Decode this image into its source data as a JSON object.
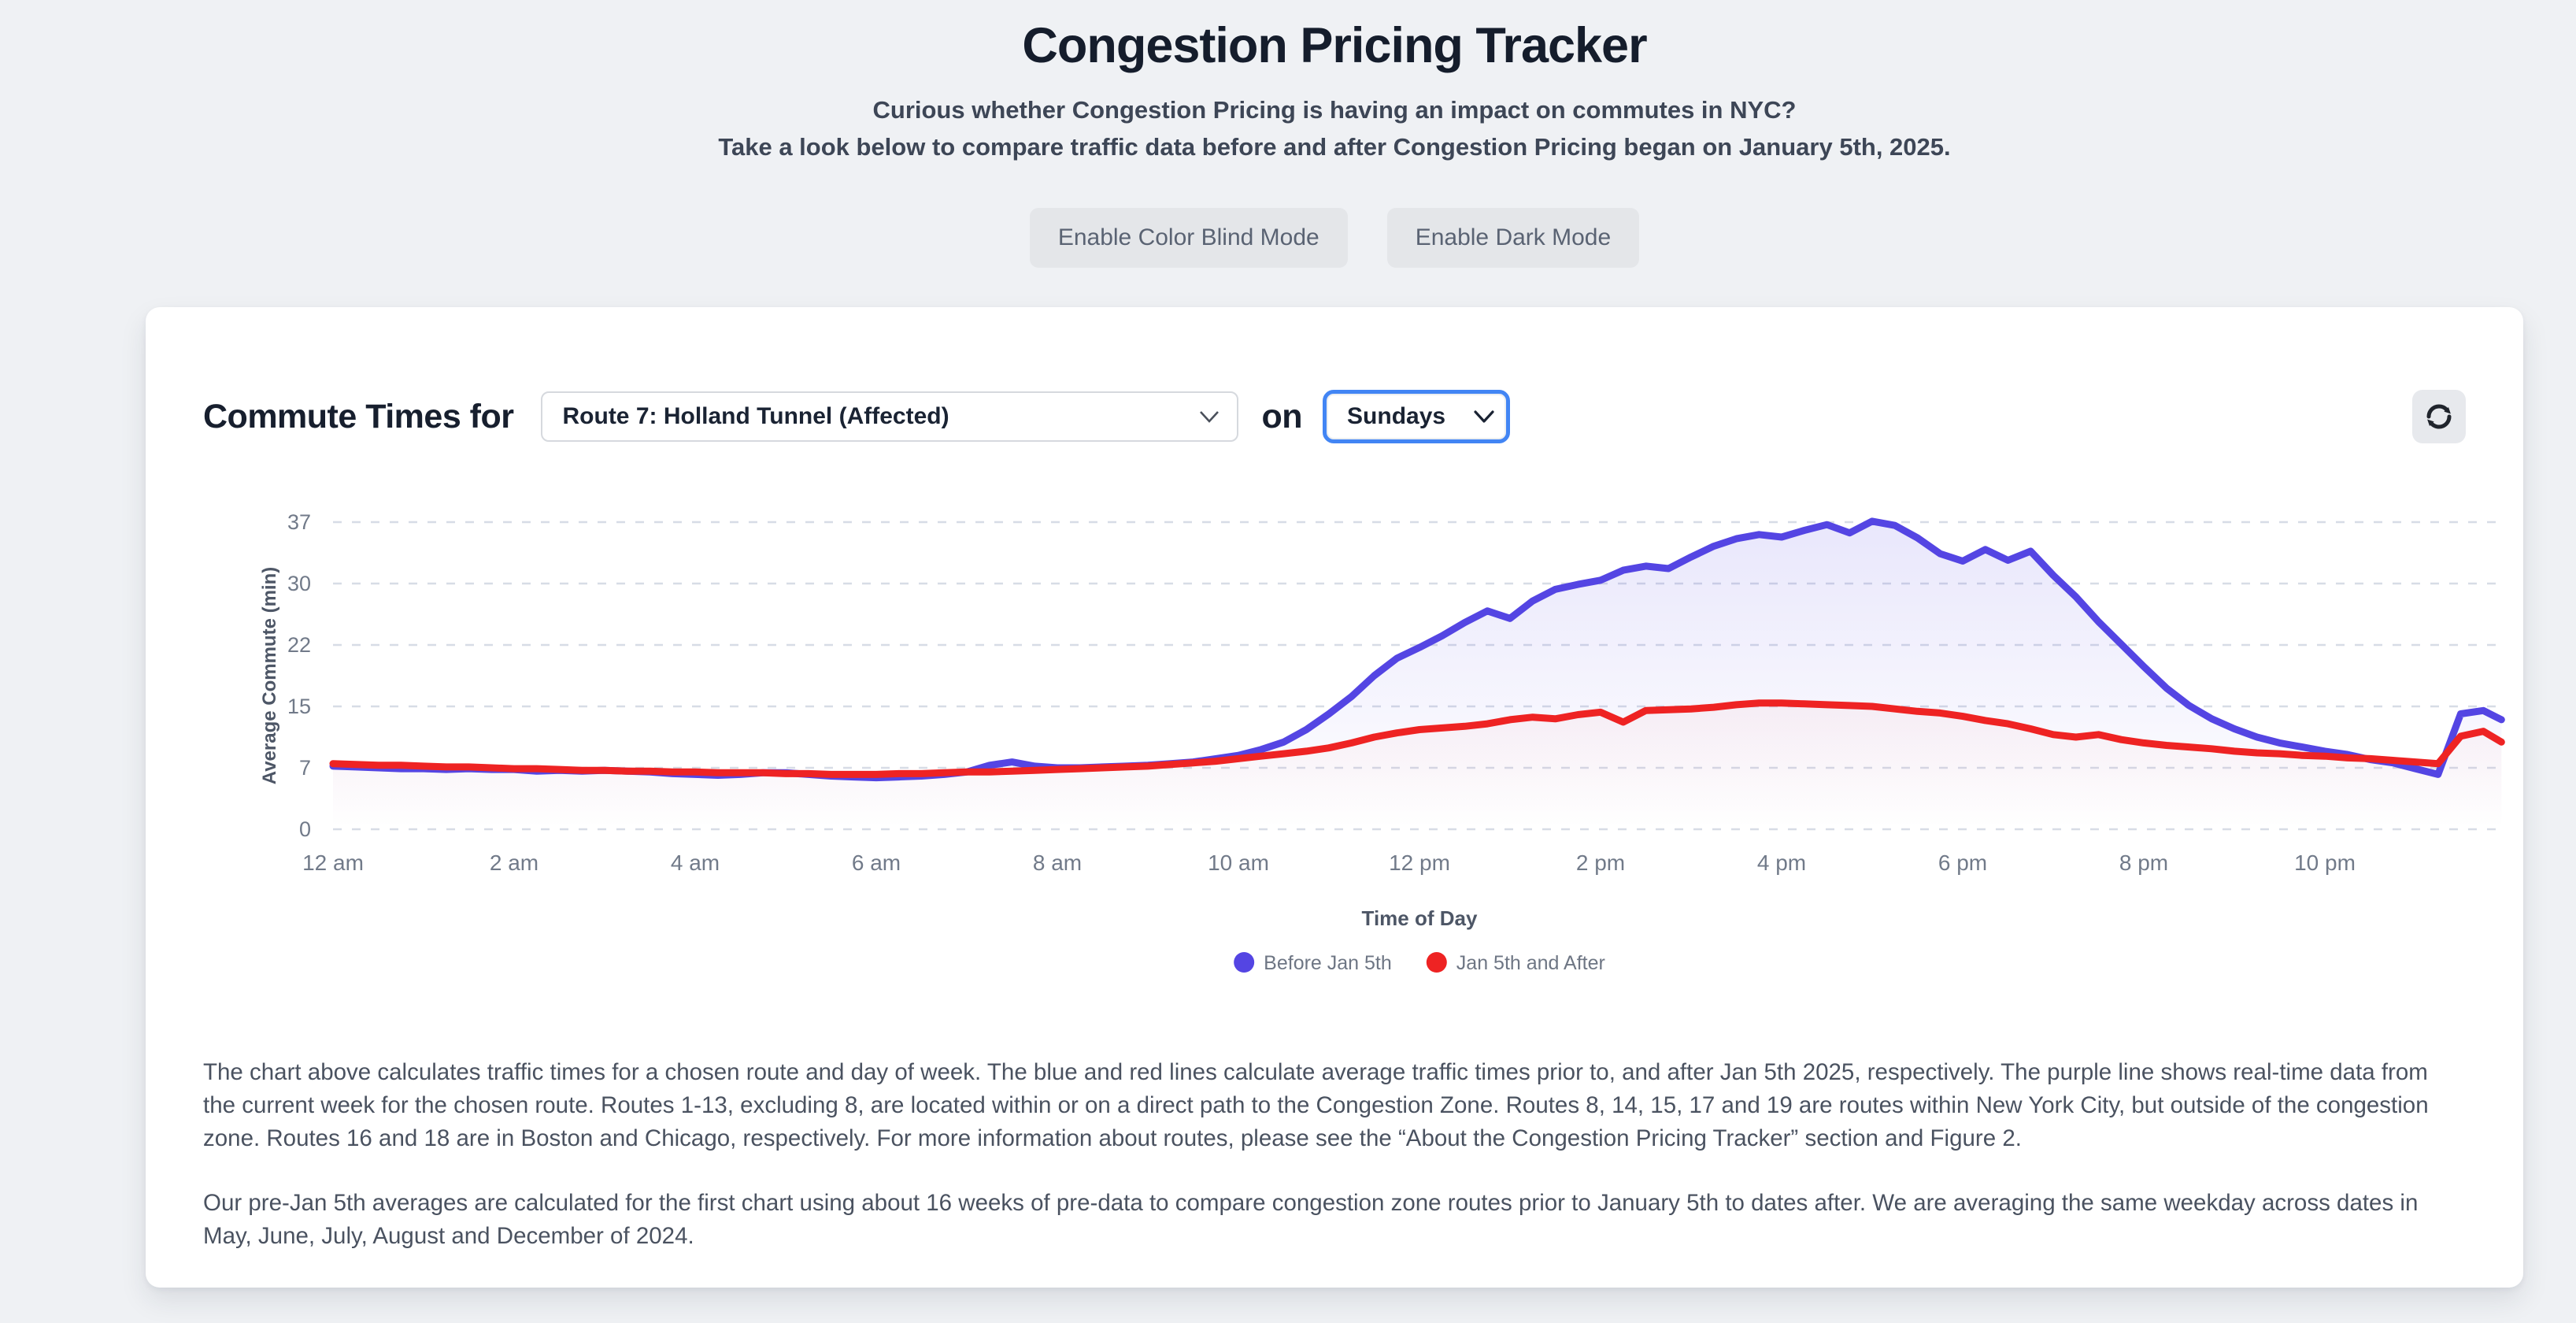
{
  "page": {
    "background_color": "#eff1f4",
    "card_color": "#ffffff"
  },
  "header": {
    "title": "Congestion Pricing Tracker",
    "subtitle_line1": "Curious whether Congestion Pricing is having an impact on commutes in NYC?",
    "subtitle_line2": "Take a look below to compare traffic data before and after Congestion Pricing began on January 5th, 2025.",
    "buttons": {
      "color_blind": "Enable Color Blind Mode",
      "dark_mode": "Enable Dark Mode"
    }
  },
  "controls": {
    "prefix_label": "Commute Times for",
    "route_select": {
      "value": "Route 7: Holland Tunnel (Affected)"
    },
    "conjunction_label": "on",
    "day_select": {
      "value": "Sundays",
      "focus_border_color": "#4285f4"
    },
    "refresh_icon": "refresh-sync"
  },
  "chart_data": {
    "type": "line",
    "title": "",
    "xlabel": "Time of Day",
    "ylabel": "Average Commute (min)",
    "xlim": [
      0,
      24
    ],
    "ylim": [
      0,
      37
    ],
    "grid": "horizontal-dashed",
    "legend_position": "bottom",
    "x_ticks": [
      {
        "hour": 0,
        "label": "12 am"
      },
      {
        "hour": 2,
        "label": "2 am"
      },
      {
        "hour": 4,
        "label": "4 am"
      },
      {
        "hour": 6,
        "label": "6 am"
      },
      {
        "hour": 8,
        "label": "8 am"
      },
      {
        "hour": 10,
        "label": "10 am"
      },
      {
        "hour": 12,
        "label": "12 pm"
      },
      {
        "hour": 14,
        "label": "2 pm"
      },
      {
        "hour": 16,
        "label": "4 pm"
      },
      {
        "hour": 18,
        "label": "6 pm"
      },
      {
        "hour": 20,
        "label": "8 pm"
      },
      {
        "hour": 22,
        "label": "10 pm"
      }
    ],
    "y_ticks": [
      {
        "value": 0,
        "label": "0"
      },
      {
        "value": 7.4,
        "label": "7"
      },
      {
        "value": 14.8,
        "label": "15"
      },
      {
        "value": 22.2,
        "label": "22"
      },
      {
        "value": 29.6,
        "label": "30"
      },
      {
        "value": 37,
        "label": "37"
      }
    ],
    "x_hours": [
      0,
      0.25,
      0.5,
      0.75,
      1,
      1.25,
      1.5,
      1.75,
      2,
      2.25,
      2.5,
      2.75,
      3,
      3.25,
      3.5,
      3.75,
      4,
      4.25,
      4.5,
      4.75,
      5,
      5.25,
      5.5,
      5.75,
      6,
      6.25,
      6.5,
      6.75,
      7,
      7.25,
      7.5,
      7.75,
      8,
      8.25,
      8.5,
      8.75,
      9,
      9.25,
      9.5,
      9.75,
      10,
      10.25,
      10.5,
      10.75,
      11,
      11.25,
      11.5,
      11.75,
      12,
      12.25,
      12.5,
      12.75,
      13,
      13.25,
      13.5,
      13.75,
      14,
      14.25,
      14.5,
      14.75,
      15,
      15.25,
      15.5,
      15.75,
      16,
      16.25,
      16.5,
      16.75,
      17,
      17.25,
      17.5,
      17.75,
      18,
      18.25,
      18.5,
      18.75,
      19,
      19.25,
      19.5,
      19.75,
      20,
      20.25,
      20.5,
      20.75,
      21,
      21.25,
      21.5,
      21.75,
      22,
      22.25,
      22.5,
      22.75,
      23,
      23.25,
      23.5,
      23.75,
      23.95
    ],
    "series": [
      {
        "name": "Before Jan 5th",
        "color": "#5445e3",
        "values": [
          7.6,
          7.5,
          7.4,
          7.3,
          7.3,
          7.2,
          7.3,
          7.2,
          7.2,
          7.0,
          7.1,
          7.0,
          7.1,
          7.0,
          6.9,
          6.7,
          6.6,
          6.5,
          6.6,
          6.8,
          6.8,
          6.6,
          6.4,
          6.3,
          6.2,
          6.3,
          6.4,
          6.6,
          6.9,
          7.7,
          8.1,
          7.6,
          7.4,
          7.4,
          7.5,
          7.6,
          7.7,
          7.9,
          8.1,
          8.5,
          8.9,
          9.6,
          10.5,
          12.0,
          13.9,
          16.0,
          18.5,
          20.6,
          21.9,
          23.3,
          24.9,
          26.3,
          25.4,
          27.5,
          28.9,
          29.5,
          30.0,
          31.2,
          31.7,
          31.4,
          32.8,
          34.1,
          35.0,
          35.5,
          35.2,
          36.0,
          36.7,
          35.7,
          37.1,
          36.6,
          35.1,
          33.2,
          32.3,
          33.7,
          32.4,
          33.5,
          30.6,
          28.0,
          25.0,
          22.3,
          19.6,
          17.0,
          14.9,
          13.3,
          12.1,
          11.1,
          10.4,
          9.9,
          9.4,
          9.0,
          8.4,
          8.0,
          7.3,
          6.6,
          13.9,
          14.3,
          13.2
        ]
      },
      {
        "name": "Jan 5th and After",
        "color": "#ee2323",
        "values": [
          7.9,
          7.8,
          7.7,
          7.7,
          7.6,
          7.5,
          7.5,
          7.4,
          7.3,
          7.3,
          7.2,
          7.1,
          7.1,
          7.0,
          7.0,
          6.9,
          6.9,
          6.8,
          6.8,
          6.8,
          6.7,
          6.7,
          6.6,
          6.6,
          6.6,
          6.7,
          6.7,
          6.8,
          6.9,
          6.9,
          7.0,
          7.1,
          7.2,
          7.3,
          7.4,
          7.5,
          7.6,
          7.8,
          8.0,
          8.2,
          8.5,
          8.8,
          9.1,
          9.4,
          9.8,
          10.4,
          11.1,
          11.6,
          12.0,
          12.2,
          12.4,
          12.7,
          13.2,
          13.5,
          13.3,
          13.8,
          14.1,
          12.9,
          14.3,
          14.4,
          14.5,
          14.7,
          15.0,
          15.2,
          15.2,
          15.1,
          15.0,
          14.9,
          14.8,
          14.5,
          14.2,
          14.0,
          13.6,
          13.1,
          12.7,
          12.1,
          11.4,
          11.1,
          11.4,
          10.8,
          10.4,
          10.1,
          9.9,
          9.7,
          9.4,
          9.2,
          9.1,
          8.9,
          8.8,
          8.6,
          8.5,
          8.3,
          8.1,
          7.9,
          11.2,
          11.8,
          10.5
        ]
      }
    ]
  },
  "description": {
    "paragraph1": "The chart above calculates traffic times for a chosen route and day of week. The blue and red lines calculate average traffic times prior to, and after Jan 5th 2025, respectively. The purple line shows real-time data from the current week for the chosen route. Routes 1-13, excluding 8, are located within or on a direct path to the Congestion Zone. Routes 8, 14, 15, 17 and 19 are routes within New York City, but outside of the congestion zone. Routes 16 and 18 are in Boston and Chicago, respectively. For more information about routes, please see the “About the Congestion Pricing Tracker” section and Figure 2.",
    "paragraph2": "Our pre-Jan 5th averages are calculated for the first chart using about 16 weeks of pre-data to compare congestion zone routes prior to January 5th to dates after. We are averaging the same weekday across dates in May, June, July, August and December of 2024."
  }
}
